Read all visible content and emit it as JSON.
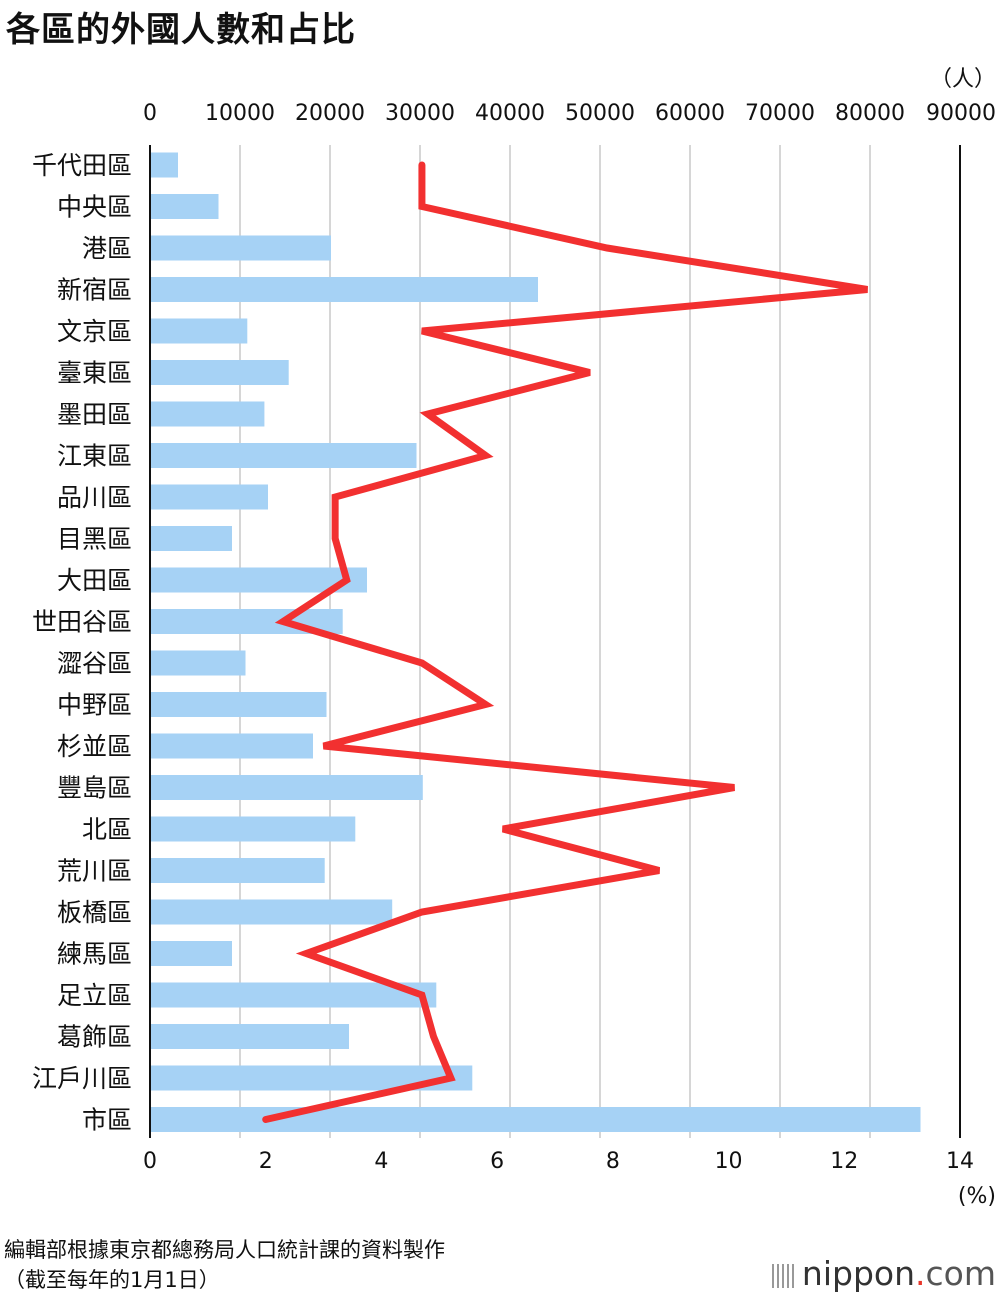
{
  "page": {
    "title": "各區的外國人數和占比"
  },
  "footnote": {
    "line1": "編輯部根據東京都總務局人口統計課的資料製作",
    "line2": "（截至每年的1月1日）"
  },
  "brand": {
    "name": "nippon",
    "dot": ".",
    "suffix": "com"
  },
  "chart_data": {
    "type": "bar+line",
    "title": "各區的外國人數和占比",
    "categories": [
      "千代田區",
      "中央區",
      "港區",
      "新宿區",
      "文京區",
      "臺東區",
      "墨田區",
      "江東區",
      "品川區",
      "目黑區",
      "大田區",
      "世田谷區",
      "澀谷區",
      "中野區",
      "杉並區",
      "豐島區",
      "北區",
      "荒川區",
      "板橋區",
      "練馬區",
      "足立區",
      "葛飾區",
      "江戶川區",
      "市區"
    ],
    "series": [
      {
        "name": "外國人數",
        "axis": "top",
        "unit": "（人）",
        "color": "#a6d2f5",
        "values": [
          3000,
          7500,
          20000,
          43000,
          10700,
          15300,
          12600,
          29500,
          13000,
          9000,
          24000,
          21300,
          10500,
          19500,
          18000,
          30200,
          22700,
          19300,
          26800,
          9000,
          31700,
          22000,
          35700,
          85500
        ]
      },
      {
        "name": "占比",
        "axis": "bottom",
        "unit": "(%)",
        "color": "#f23030",
        "values": [
          4.7,
          4.7,
          7.9,
          12.4,
          4.7,
          7.6,
          4.8,
          5.8,
          3.2,
          3.2,
          3.4,
          2.3,
          4.7,
          5.8,
          3.0,
          10.1,
          6.1,
          8.8,
          4.7,
          2.7,
          4.7,
          4.9,
          5.2,
          2.0
        ]
      }
    ],
    "top_axis": {
      "ticks": [
        0,
        10000,
        20000,
        30000,
        40000,
        50000,
        60000,
        70000,
        80000,
        90000
      ],
      "range": [
        0,
        90000
      ],
      "label": "（人）"
    },
    "bottom_axis": {
      "ticks": [
        0,
        2,
        4,
        6,
        8,
        10,
        12,
        14
      ],
      "range": [
        0,
        14
      ],
      "label": "(%)"
    },
    "grid": true
  }
}
